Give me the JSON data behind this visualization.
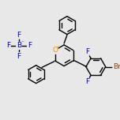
{
  "bg_color": "#e8e8e8",
  "bond_color": "#000000",
  "line_width": 1.0,
  "atom_colors": {
    "O": "#ff8c00",
    "F": "#0000cd",
    "B": "#0000cd",
    "Br": "#8b4513",
    "C": "#000000"
  },
  "font_size": 6.5,
  "ring_r": 14,
  "ph_r": 12,
  "ph3_r": 13
}
